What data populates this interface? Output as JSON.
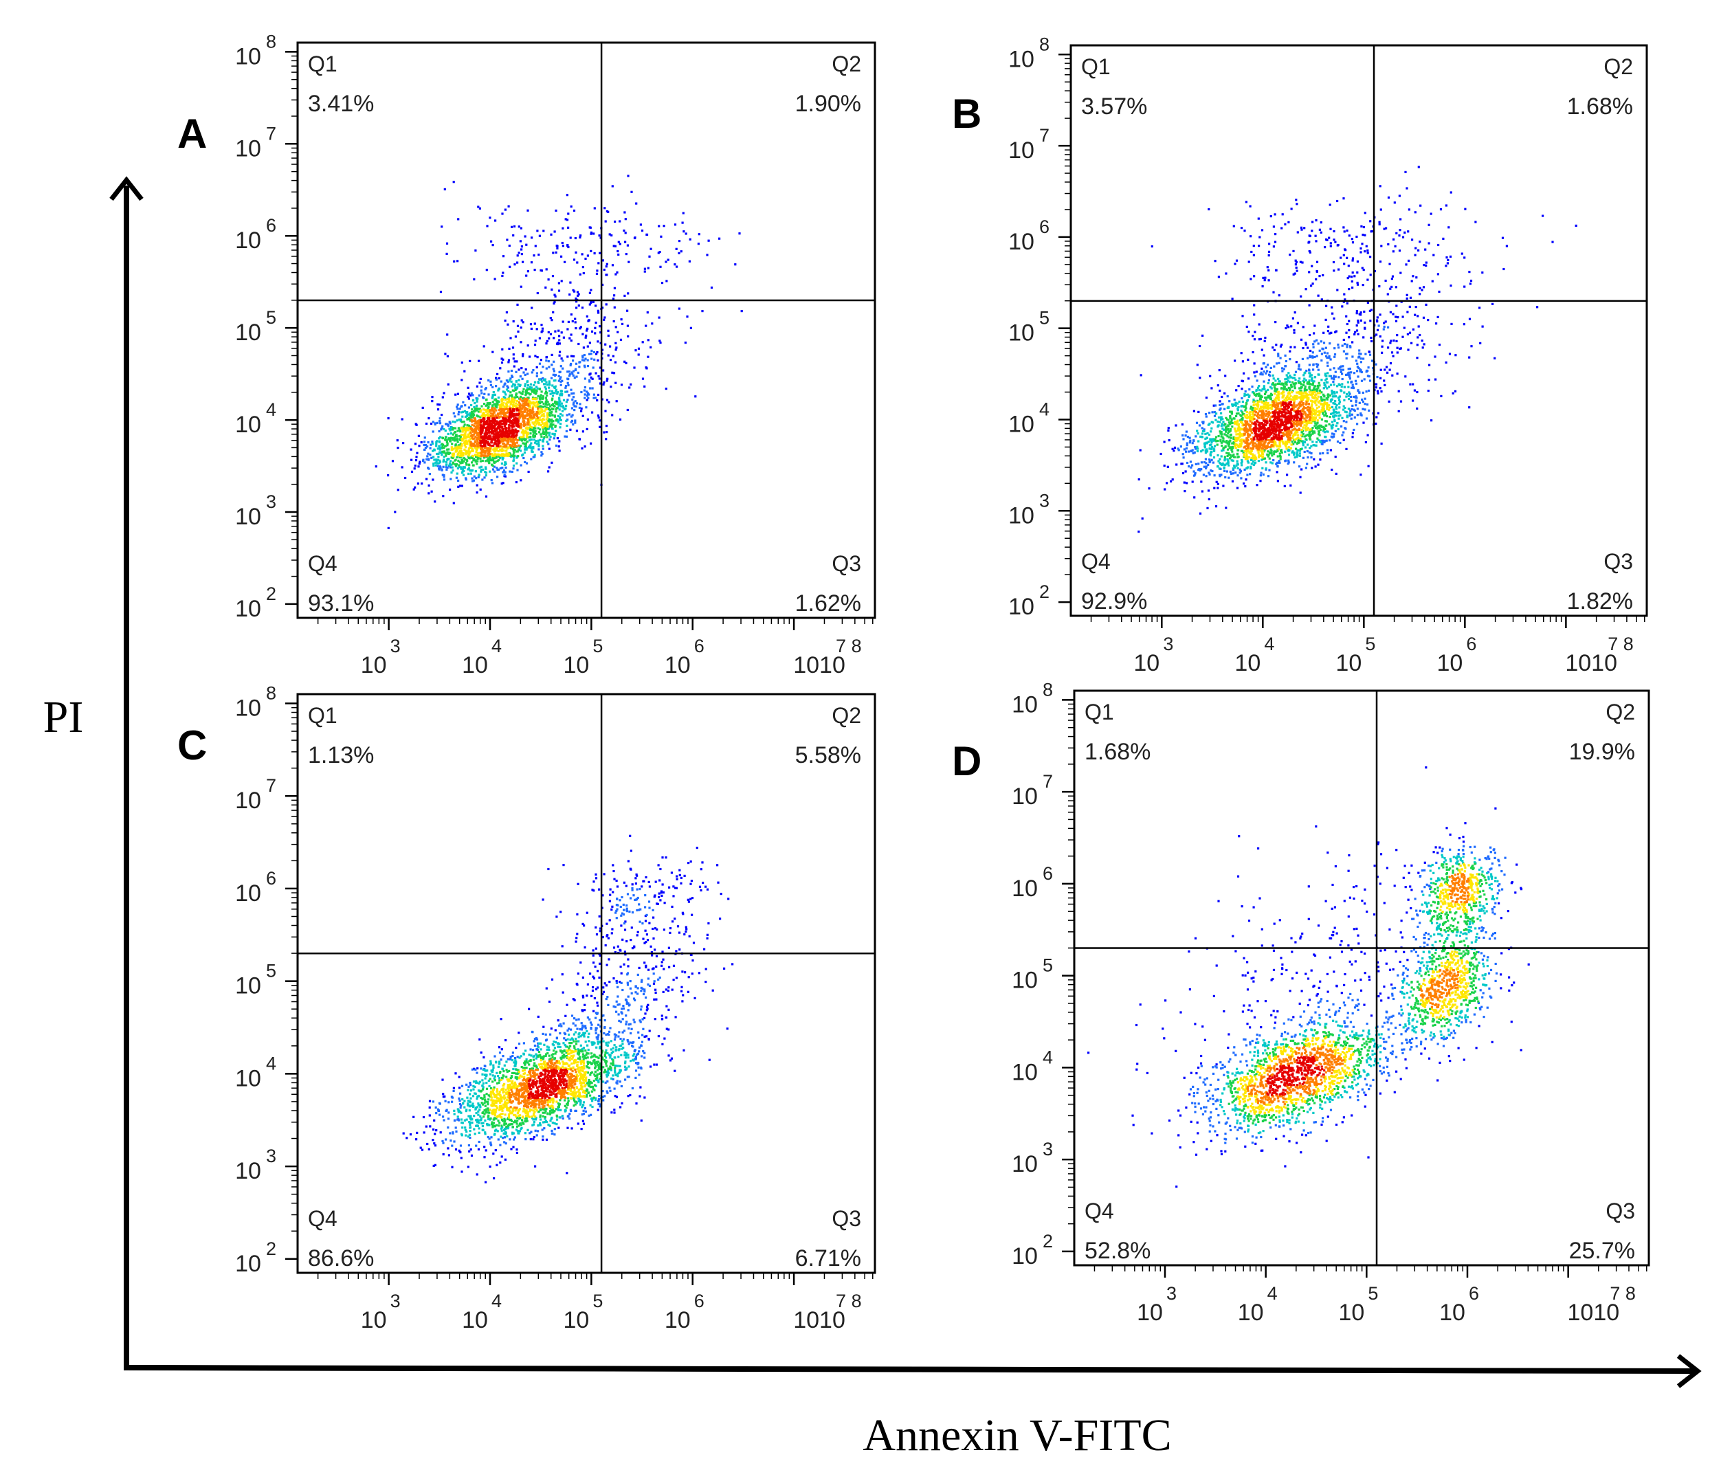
{
  "figure": {
    "y_axis_label": "PI",
    "x_axis_label": "Annexin V-FITC"
  },
  "colors": {
    "axis": "#000000",
    "density": [
      "#0000ff",
      "#1e6bff",
      "#00c8c8",
      "#19d24a",
      "#ffe600",
      "#ff7f00",
      "#e60000"
    ]
  },
  "chart_data": [
    {
      "panel": "A",
      "type": "scatter",
      "subtype": "flow-cytometry-density-dot-plot",
      "xlabel": "Annexin V-FITC",
      "ylabel": "PI",
      "x_scale": "log",
      "y_scale": "log",
      "x_ticks": [
        {
          "sup": "3",
          "base": "10"
        },
        {
          "sup": "4",
          "base": "10"
        },
        {
          "sup": "5",
          "base": "10"
        },
        {
          "sup": "6",
          "base": "10"
        },
        {
          "sup": "7 8",
          "base": "1010"
        }
      ],
      "y_ticks": [
        {
          "sup": "8",
          "base": "10"
        },
        {
          "sup": "7",
          "base": "10"
        },
        {
          "sup": "6",
          "base": "10"
        },
        {
          "sup": "5",
          "base": "10"
        },
        {
          "sup": "4",
          "base": "10"
        },
        {
          "sup": "3",
          "base": "10"
        },
        {
          "sup": "2",
          "base": "10"
        }
      ],
      "gate_x_log": 5.1,
      "gate_y_log": 5.3,
      "quadrants": [
        {
          "name": "Q1",
          "percent": "3.41%"
        },
        {
          "name": "Q2",
          "percent": "1.90%"
        },
        {
          "name": "Q3",
          "percent": "1.62%"
        },
        {
          "name": "Q4",
          "percent": "93.1%"
        }
      ],
      "populations": [
        {
          "mean_x_log": 4.1,
          "mean_y_log": 3.9,
          "sd_x": 0.35,
          "sd_y": 0.25,
          "rho": 0.55,
          "n": 2300
        },
        {
          "mean_x_log": 4.6,
          "mean_y_log": 4.5,
          "sd_x": 0.55,
          "sd_y": 0.45,
          "rho": 0.45,
          "n": 500
        },
        {
          "mean_x_log": 4.8,
          "mean_y_log": 5.9,
          "sd_x": 0.7,
          "sd_y": 0.25,
          "rho": 0.1,
          "n": 200
        }
      ]
    },
    {
      "panel": "B",
      "type": "scatter",
      "subtype": "flow-cytometry-density-dot-plot",
      "xlabel": "Annexin V-FITC",
      "ylabel": "PI",
      "x_scale": "log",
      "y_scale": "log",
      "x_ticks": [
        {
          "sup": "3",
          "base": "10"
        },
        {
          "sup": "4",
          "base": "10"
        },
        {
          "sup": "5",
          "base": "10"
        },
        {
          "sup": "6",
          "base": "10"
        },
        {
          "sup": "7 8",
          "base": "1010"
        }
      ],
      "y_ticks": [
        {
          "sup": "8",
          "base": "10"
        },
        {
          "sup": "7",
          "base": "10"
        },
        {
          "sup": "6",
          "base": "10"
        },
        {
          "sup": "5",
          "base": "10"
        },
        {
          "sup": "4",
          "base": "10"
        },
        {
          "sup": "3",
          "base": "10"
        },
        {
          "sup": "2",
          "base": "10"
        }
      ],
      "gate_x_log": 5.1,
      "gate_y_log": 5.3,
      "quadrants": [
        {
          "name": "Q1",
          "percent": "3.57%"
        },
        {
          "name": "Q2",
          "percent": "1.68%"
        },
        {
          "name": "Q3",
          "percent": "1.82%"
        },
        {
          "name": "Q4",
          "percent": "92.9%"
        }
      ],
      "populations": [
        {
          "mean_x_log": 4.1,
          "mean_y_log": 3.95,
          "sd_x": 0.4,
          "sd_y": 0.28,
          "rho": 0.55,
          "n": 2300
        },
        {
          "mean_x_log": 4.7,
          "mean_y_log": 4.6,
          "sd_x": 0.6,
          "sd_y": 0.5,
          "rho": 0.45,
          "n": 550
        },
        {
          "mean_x_log": 4.9,
          "mean_y_log": 5.9,
          "sd_x": 0.65,
          "sd_y": 0.28,
          "rho": 0.1,
          "n": 220
        }
      ]
    },
    {
      "panel": "C",
      "type": "scatter",
      "subtype": "flow-cytometry-density-dot-plot",
      "xlabel": "Annexin V-FITC",
      "ylabel": "PI",
      "x_scale": "log",
      "y_scale": "log",
      "x_ticks": [
        {
          "sup": "3",
          "base": "10"
        },
        {
          "sup": "4",
          "base": "10"
        },
        {
          "sup": "5",
          "base": "10"
        },
        {
          "sup": "6",
          "base": "10"
        },
        {
          "sup": "7 8",
          "base": "1010"
        }
      ],
      "y_ticks": [
        {
          "sup": "8",
          "base": "10"
        },
        {
          "sup": "7",
          "base": "10"
        },
        {
          "sup": "6",
          "base": "10"
        },
        {
          "sup": "5",
          "base": "10"
        },
        {
          "sup": "4",
          "base": "10"
        },
        {
          "sup": "3",
          "base": "10"
        },
        {
          "sup": "2",
          "base": "10"
        }
      ],
      "gate_x_log": 5.1,
      "gate_y_log": 5.3,
      "quadrants": [
        {
          "name": "Q1",
          "percent": "1.13%"
        },
        {
          "name": "Q2",
          "percent": "5.58%"
        },
        {
          "name": "Q3",
          "percent": "6.71%"
        },
        {
          "name": "Q4",
          "percent": "86.6%"
        }
      ],
      "populations": [
        {
          "mean_x_log": 4.5,
          "mean_y_log": 3.85,
          "sd_x": 0.45,
          "sd_y": 0.3,
          "rho": 0.6,
          "n": 2300
        },
        {
          "mean_x_log": 5.3,
          "mean_y_log": 4.8,
          "sd_x": 0.4,
          "sd_y": 0.5,
          "rho": 0.5,
          "n": 350
        },
        {
          "mean_x_log": 5.5,
          "mean_y_log": 5.9,
          "sd_x": 0.35,
          "sd_y": 0.25,
          "rho": 0.1,
          "n": 180
        }
      ]
    },
    {
      "panel": "D",
      "type": "scatter",
      "subtype": "flow-cytometry-density-dot-plot",
      "xlabel": "Annexin V-FITC",
      "ylabel": "PI",
      "x_scale": "log",
      "y_scale": "log",
      "x_ticks": [
        {
          "sup": "3",
          "base": "10"
        },
        {
          "sup": "4",
          "base": "10"
        },
        {
          "sup": "5",
          "base": "10"
        },
        {
          "sup": "6",
          "base": "10"
        },
        {
          "sup": "7 8",
          "base": "1010"
        }
      ],
      "y_ticks": [
        {
          "sup": "8",
          "base": "10"
        },
        {
          "sup": "7",
          "base": "10"
        },
        {
          "sup": "6",
          "base": "10"
        },
        {
          "sup": "5",
          "base": "10"
        },
        {
          "sup": "4",
          "base": "10"
        },
        {
          "sup": "3",
          "base": "10"
        },
        {
          "sup": "2",
          "base": "10"
        }
      ],
      "gate_x_log": 5.1,
      "gate_y_log": 5.3,
      "quadrants": [
        {
          "name": "Q1",
          "percent": "1.68%"
        },
        {
          "name": "Q2",
          "percent": "19.9%"
        },
        {
          "name": "Q3",
          "percent": "25.7%"
        },
        {
          "name": "Q4",
          "percent": "52.8%"
        }
      ],
      "populations": [
        {
          "mean_x_log": 4.3,
          "mean_y_log": 3.9,
          "sd_x": 0.45,
          "sd_y": 0.3,
          "rho": 0.55,
          "n": 1700
        },
        {
          "mean_x_log": 5.8,
          "mean_y_log": 4.9,
          "sd_x": 0.22,
          "sd_y": 0.3,
          "rho": 0.3,
          "n": 800
        },
        {
          "mean_x_log": 5.9,
          "mean_y_log": 5.9,
          "sd_x": 0.2,
          "sd_y": 0.25,
          "rho": 0.2,
          "n": 600
        },
        {
          "mean_x_log": 4.6,
          "mean_y_log": 4.9,
          "sd_x": 0.75,
          "sd_y": 0.75,
          "rho": 0.3,
          "n": 350
        }
      ]
    }
  ]
}
